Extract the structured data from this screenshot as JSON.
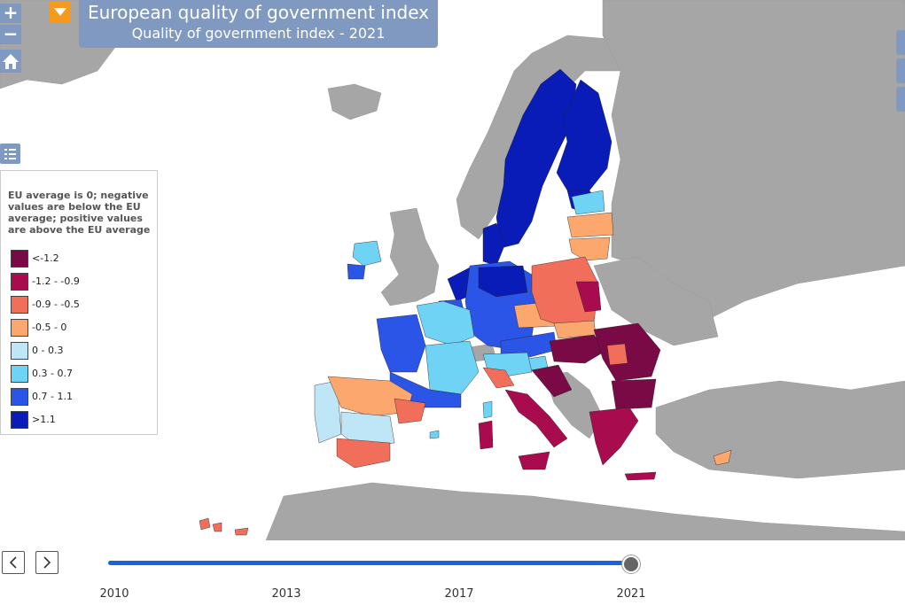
{
  "header": {
    "title": "European quality of government index",
    "subtitle": "Quality of government index - 2021"
  },
  "controls": {
    "zoom_in": "+",
    "zoom_out": "−"
  },
  "legend": {
    "note": "EU average is 0; negative values are below the EU average; positive values are above the EU average",
    "items": [
      {
        "label": "<-1.2",
        "color": "#7a0a45"
      },
      {
        "label": "-1.2 - -0.9",
        "color": "#a80c4e"
      },
      {
        "label": "-0.9 - -0.5",
        "color": "#f06e5a"
      },
      {
        "label": "-0.5 - 0",
        "color": "#fba76e"
      },
      {
        "label": "0 - 0.3",
        "color": "#bfe6f7"
      },
      {
        "label": "0.3 - 0.7",
        "color": "#6fd3f5"
      },
      {
        "label": "0.7 - 1.1",
        "color": "#2a55e6"
      },
      {
        "label": ">1.1",
        "color": "#0a1cb8"
      }
    ]
  },
  "timeline": {
    "ticks": [
      "2010",
      "2013",
      "2017",
      "2021"
    ],
    "selected": "2021"
  },
  "colors": {
    "land_nodata": "#a6a6a6",
    "sea": "#ffffff",
    "ui_blue": "#7f99c1",
    "accent_orange": "#f59a1c",
    "slider": "#1a62d9"
  }
}
